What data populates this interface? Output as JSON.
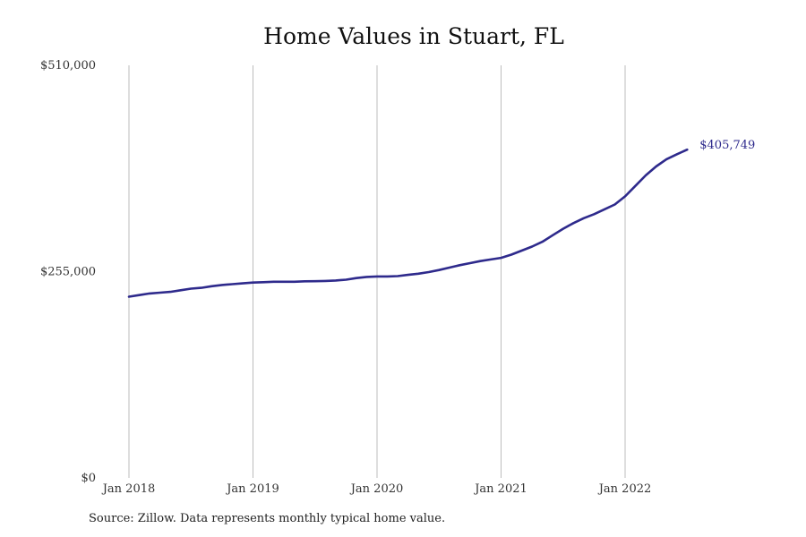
{
  "chart_data": {
    "type": "line",
    "title": "Home Values in Stuart, FL",
    "xlabel": "",
    "ylabel": "",
    "ylim": [
      0,
      510000
    ],
    "y_ticks": [
      {
        "value": 0,
        "label": "$0"
      },
      {
        "value": 255000,
        "label": "$255,000"
      },
      {
        "value": 510000,
        "label": "$510,000"
      }
    ],
    "x_ticks": [
      {
        "value": "2018-01",
        "label": "Jan 2018"
      },
      {
        "value": "2019-01",
        "label": "Jan 2019"
      },
      {
        "value": "2020-01",
        "label": "Jan 2020"
      },
      {
        "value": "2021-01",
        "label": "Jan 2021"
      },
      {
        "value": "2022-01",
        "label": "Jan 2022"
      }
    ],
    "grid": "vertical",
    "series_color": "#2e2a8c",
    "end_label": "$405,749",
    "series": [
      {
        "x": [
          "2018-01",
          "2018-02",
          "2018-03",
          "2018-04",
          "2018-05",
          "2018-06",
          "2018-07",
          "2018-08",
          "2018-09",
          "2018-10",
          "2018-11",
          "2018-12",
          "2019-01",
          "2019-02",
          "2019-03",
          "2019-04",
          "2019-05",
          "2019-06",
          "2019-07",
          "2019-08",
          "2019-09",
          "2019-10",
          "2019-11",
          "2019-12",
          "2020-01",
          "2020-02",
          "2020-03",
          "2020-04",
          "2020-05",
          "2020-06",
          "2020-07",
          "2020-08",
          "2020-09",
          "2020-10",
          "2020-11",
          "2020-12",
          "2021-01",
          "2021-02",
          "2021-03",
          "2021-04",
          "2021-05",
          "2021-06",
          "2021-07",
          "2021-08",
          "2021-09",
          "2021-10",
          "2021-11",
          "2021-12",
          "2022-01",
          "2022-02",
          "2022-03",
          "2022-04",
          "2022-05",
          "2022-06",
          "2022-07"
        ],
        "values": [
          224000,
          226000,
          228000,
          229000,
          230000,
          232000,
          234000,
          235000,
          237000,
          238500,
          239500,
          240500,
          241500,
          242000,
          242500,
          242500,
          242500,
          243000,
          243200,
          243500,
          244000,
          245000,
          247000,
          248500,
          249000,
          249000,
          249500,
          251000,
          252500,
          254500,
          257000,
          260000,
          263000,
          265500,
          268000,
          270000,
          272000,
          276000,
          281000,
          286000,
          292000,
          300000,
          308000,
          315000,
          321000,
          326000,
          332000,
          338000,
          348000,
          361000,
          374000,
          385000,
          394000,
          400000,
          405749
        ]
      }
    ]
  },
  "footer": {
    "source": "Source: Zillow. Data represents monthly typical home value."
  }
}
